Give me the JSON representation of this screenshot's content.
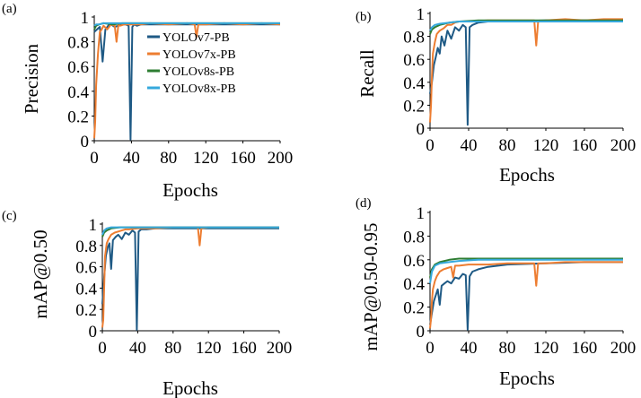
{
  "chart_data": [
    {
      "panel": "(a)",
      "type": "line",
      "xlabel": "",
      "ylabel": "Precision",
      "xlim": [
        0,
        200
      ],
      "ylim": [
        0,
        1
      ],
      "xticks": [
        "0",
        "40",
        "80",
        "120",
        "160",
        "200"
      ],
      "yticks": [
        "0",
        "0.2",
        "0.4",
        "0.6",
        "0.8",
        "1"
      ],
      "grid": false,
      "legend": "center-right",
      "series": [
        {
          "name": "YOLOv7-PB",
          "color": "#1f5a85",
          "x": [
            0,
            3,
            6,
            9,
            12,
            15,
            18,
            22,
            26,
            30,
            34,
            37,
            39,
            41,
            43,
            46,
            50,
            60,
            80,
            100,
            120,
            140,
            160,
            180,
            200
          ],
          "y": [
            0.88,
            0.9,
            0.92,
            0.64,
            0.9,
            0.93,
            0.94,
            0.92,
            0.93,
            0.94,
            0.94,
            0.93,
            0.01,
            0.92,
            0.94,
            0.93,
            0.94,
            0.94,
            0.94,
            0.94,
            0.94,
            0.94,
            0.94,
            0.94,
            0.94
          ]
        },
        {
          "name": "YOLOv7x-PB",
          "color": "#ed7d31",
          "x": [
            0,
            1,
            2,
            4,
            6,
            8,
            10,
            14,
            18,
            22,
            24,
            26,
            28,
            32,
            40,
            50,
            60,
            80,
            100,
            108,
            110,
            112,
            120,
            140,
            160,
            180,
            200
          ],
          "y": [
            0.02,
            0.15,
            0.45,
            0.7,
            0.88,
            0.9,
            0.93,
            0.9,
            0.94,
            0.93,
            0.8,
            0.94,
            0.93,
            0.94,
            0.94,
            0.94,
            0.95,
            0.94,
            0.95,
            0.94,
            0.84,
            0.94,
            0.94,
            0.95,
            0.94,
            0.95,
            0.94
          ]
        },
        {
          "name": "YOLOv8s-PB",
          "color": "#2e7d32",
          "x": [
            0,
            2,
            5,
            10,
            20,
            30,
            50,
            80,
            120,
            160,
            200
          ],
          "y": [
            0.9,
            0.93,
            0.94,
            0.95,
            0.94,
            0.95,
            0.95,
            0.95,
            0.95,
            0.95,
            0.95
          ]
        },
        {
          "name": "YOLOv8x-PB",
          "color": "#35a8dc",
          "x": [
            0,
            2,
            5,
            10,
            20,
            30,
            50,
            80,
            120,
            160,
            200
          ],
          "y": [
            0.93,
            0.94,
            0.94,
            0.95,
            0.95,
            0.95,
            0.95,
            0.95,
            0.95,
            0.95,
            0.95
          ]
        }
      ]
    },
    {
      "panel": "(b)",
      "type": "line",
      "xlabel": "Epochs",
      "ylabel": "Recall",
      "xlim": [
        0,
        200
      ],
      "ylim": [
        0,
        1
      ],
      "xticks": [
        "0",
        "40",
        "80",
        "120",
        "160",
        "200"
      ],
      "yticks": [
        "0",
        "0.2",
        "0.4",
        "0.6",
        "0.8",
        "1"
      ],
      "grid": false,
      "series": [
        {
          "name": "YOLOv7-PB",
          "color": "#1f5a85",
          "x": [
            0,
            2,
            4,
            6,
            8,
            10,
            12,
            15,
            18,
            22,
            26,
            30,
            34,
            37,
            39,
            41,
            44,
            50,
            60,
            80,
            120,
            160,
            200
          ],
          "y": [
            0.3,
            0.4,
            0.55,
            0.62,
            0.7,
            0.65,
            0.8,
            0.72,
            0.85,
            0.78,
            0.88,
            0.85,
            0.9,
            0.88,
            0.03,
            0.88,
            0.9,
            0.92,
            0.93,
            0.93,
            0.94,
            0.94,
            0.94
          ]
        },
        {
          "name": "YOLOv7x-PB",
          "color": "#ed7d31",
          "x": [
            0,
            1,
            2,
            3,
            5,
            7,
            10,
            14,
            18,
            22,
            26,
            30,
            40,
            60,
            80,
            100,
            108,
            110,
            112,
            120,
            140,
            160,
            180,
            200
          ],
          "y": [
            0.05,
            0.2,
            0.45,
            0.65,
            0.75,
            0.82,
            0.85,
            0.87,
            0.9,
            0.9,
            0.92,
            0.93,
            0.93,
            0.94,
            0.94,
            0.94,
            0.94,
            0.72,
            0.93,
            0.94,
            0.95,
            0.94,
            0.95,
            0.95
          ]
        },
        {
          "name": "YOLOv8s-PB",
          "color": "#2e7d32",
          "x": [
            0,
            2,
            5,
            10,
            20,
            30,
            50,
            80,
            120,
            160,
            200
          ],
          "y": [
            0.82,
            0.86,
            0.88,
            0.9,
            0.92,
            0.93,
            0.94,
            0.94,
            0.94,
            0.94,
            0.94
          ]
        },
        {
          "name": "YOLOv8x-PB",
          "color": "#35a8dc",
          "x": [
            0,
            2,
            5,
            10,
            20,
            30,
            50,
            80,
            120,
            160,
            200
          ],
          "y": [
            0.85,
            0.88,
            0.9,
            0.91,
            0.92,
            0.93,
            0.93,
            0.93,
            0.93,
            0.93,
            0.93
          ]
        }
      ]
    },
    {
      "panel": "(c)",
      "type": "line",
      "xlabel": "Epochs",
      "ylabel": "mAP@0.50",
      "xlim": [
        0,
        200
      ],
      "ylim": [
        0,
        1
      ],
      "xticks": [
        "0",
        "40",
        "80",
        "120",
        "160",
        "200"
      ],
      "yticks": [
        "0",
        "0.2",
        "0.4",
        "0.6",
        "0.8",
        "1"
      ],
      "grid": false,
      "series": [
        {
          "name": "YOLOv7-PB",
          "color": "#1f5a85",
          "x": [
            0,
            2,
            4,
            6,
            8,
            10,
            12,
            15,
            18,
            22,
            26,
            30,
            34,
            37,
            39,
            41,
            44,
            50,
            60,
            80,
            120,
            160,
            200
          ],
          "y": [
            0.25,
            0.5,
            0.7,
            0.78,
            0.82,
            0.58,
            0.85,
            0.88,
            0.9,
            0.86,
            0.92,
            0.9,
            0.94,
            0.92,
            0.01,
            0.93,
            0.95,
            0.95,
            0.96,
            0.96,
            0.96,
            0.96,
            0.96
          ]
        },
        {
          "name": "YOLOv7x-PB",
          "color": "#ed7d31",
          "x": [
            0,
            1,
            2,
            3,
            5,
            7,
            10,
            14,
            18,
            22,
            26,
            30,
            40,
            60,
            80,
            100,
            108,
            110,
            112,
            120,
            140,
            160,
            180,
            200
          ],
          "y": [
            0.03,
            0.1,
            0.4,
            0.7,
            0.82,
            0.86,
            0.9,
            0.92,
            0.93,
            0.94,
            0.95,
            0.95,
            0.96,
            0.96,
            0.97,
            0.97,
            0.97,
            0.8,
            0.96,
            0.97,
            0.97,
            0.97,
            0.97,
            0.97
          ]
        },
        {
          "name": "YOLOv8s-PB",
          "color": "#2e7d32",
          "x": [
            0,
            2,
            5,
            10,
            20,
            30,
            50,
            80,
            120,
            160,
            200
          ],
          "y": [
            0.88,
            0.92,
            0.94,
            0.96,
            0.97,
            0.97,
            0.97,
            0.97,
            0.97,
            0.97,
            0.97
          ]
        },
        {
          "name": "YOLOv8x-PB",
          "color": "#35a8dc",
          "x": [
            0,
            2,
            5,
            10,
            20,
            30,
            50,
            80,
            120,
            160,
            200
          ],
          "y": [
            0.9,
            0.94,
            0.96,
            0.97,
            0.97,
            0.97,
            0.97,
            0.97,
            0.97,
            0.97,
            0.97
          ]
        }
      ]
    },
    {
      "panel": "(d)",
      "type": "line",
      "xlabel": "Epochs",
      "ylabel": "mAP@0.50-0.95",
      "xlim": [
        0,
        200
      ],
      "ylim": [
        0,
        1
      ],
      "xticks": [
        "0",
        "40",
        "80",
        "120",
        "160",
        "200"
      ],
      "yticks": [
        "0",
        "0.2",
        "0.4",
        "0.6",
        "0.8",
        "1"
      ],
      "grid": false,
      "series": [
        {
          "name": "YOLOv7-PB",
          "color": "#1f5a85",
          "x": [
            0,
            2,
            4,
            6,
            8,
            10,
            12,
            15,
            18,
            22,
            26,
            30,
            34,
            37,
            39,
            41,
            44,
            50,
            60,
            80,
            120,
            160,
            200
          ],
          "y": [
            0.05,
            0.15,
            0.25,
            0.3,
            0.35,
            0.22,
            0.38,
            0.4,
            0.42,
            0.4,
            0.45,
            0.44,
            0.48,
            0.47,
            0.01,
            0.46,
            0.5,
            0.52,
            0.54,
            0.56,
            0.57,
            0.58,
            0.58
          ]
        },
        {
          "name": "YOLOv7x-PB",
          "color": "#ed7d31",
          "x": [
            0,
            1,
            2,
            3,
            5,
            7,
            10,
            14,
            18,
            22,
            24,
            26,
            30,
            40,
            60,
            80,
            100,
            108,
            110,
            112,
            120,
            140,
            160,
            180,
            200
          ],
          "y": [
            0.02,
            0.1,
            0.25,
            0.35,
            0.42,
            0.46,
            0.5,
            0.52,
            0.53,
            0.54,
            0.45,
            0.55,
            0.55,
            0.56,
            0.56,
            0.57,
            0.57,
            0.57,
            0.38,
            0.57,
            0.57,
            0.58,
            0.58,
            0.58,
            0.58
          ]
        },
        {
          "name": "YOLOv8s-PB",
          "color": "#2e7d32",
          "x": [
            0,
            2,
            5,
            10,
            20,
            30,
            50,
            80,
            120,
            160,
            200
          ],
          "y": [
            0.45,
            0.52,
            0.56,
            0.58,
            0.6,
            0.61,
            0.61,
            0.61,
            0.61,
            0.61,
            0.61
          ]
        },
        {
          "name": "YOLOv8x-PB",
          "color": "#35a8dc",
          "x": [
            0,
            2,
            5,
            10,
            20,
            30,
            50,
            80,
            120,
            160,
            200
          ],
          "y": [
            0.4,
            0.5,
            0.55,
            0.57,
            0.58,
            0.59,
            0.6,
            0.6,
            0.6,
            0.6,
            0.6
          ]
        }
      ]
    }
  ]
}
